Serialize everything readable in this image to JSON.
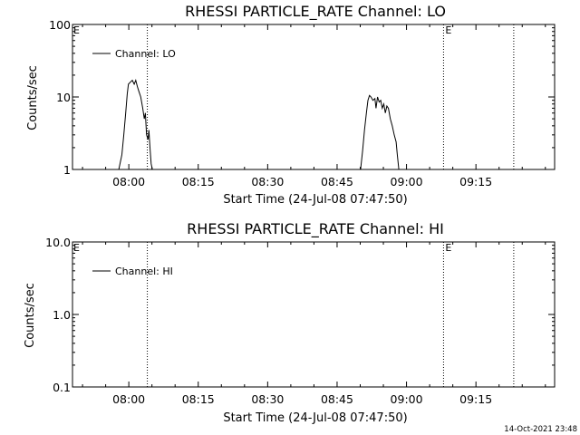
{
  "chart_data": [
    {
      "type": "line",
      "title": "RHESSI PARTICLE_RATE Channel: LO",
      "ylabel": "Counts/sec",
      "xlabel": "Start Time (24-Jul-08 07:47:50)",
      "y_scale": "log",
      "ylim": [
        1,
        100
      ],
      "y_ticks": [
        "1",
        "10",
        "100"
      ],
      "xlim": [
        "07:47:50",
        "09:32:00"
      ],
      "x_ticks": [
        "08:00",
        "08:15",
        "08:30",
        "08:45",
        "09:00",
        "09:15"
      ],
      "legend": {
        "label": "Channel: LO",
        "placement": "top-left"
      },
      "event_lines": [
        {
          "time": "08:04:00",
          "label": ""
        },
        {
          "time": "09:08:00",
          "label": "E"
        },
        {
          "time": "09:23:10",
          "label": ""
        }
      ],
      "left_marker": "E",
      "series": [
        {
          "name": "Channel: LO",
          "segments": [
            [
              [
                "07:57:50",
                1
              ],
              [
                "07:58:30",
                1.6
              ],
              [
                "07:58:55",
                3
              ],
              [
                "07:59:20",
                6
              ],
              [
                "07:59:40",
                11
              ],
              [
                "07:59:55",
                15
              ],
              [
                "08:00:20",
                16
              ],
              [
                "08:00:45",
                17
              ],
              [
                "08:01:10",
                15
              ],
              [
                "08:01:30",
                17
              ],
              [
                "08:01:50",
                14
              ],
              [
                "08:02:10",
                12
              ],
              [
                "08:02:35",
                10
              ],
              [
                "08:03:00",
                7
              ],
              [
                "08:03:20",
                5
              ],
              [
                "08:03:35",
                6
              ],
              [
                "08:03:50",
                3
              ],
              [
                "08:04:10",
                2.6
              ],
              [
                "08:04:20",
                3.5
              ],
              [
                "08:04:35",
                2
              ],
              [
                "08:04:50",
                1.2
              ],
              [
                "08:05:05",
                1
              ]
            ],
            [
              [
                "08:50:05",
                1
              ],
              [
                "08:50:30",
                1.8
              ],
              [
                "08:50:55",
                3.5
              ],
              [
                "08:51:20",
                6
              ],
              [
                "08:51:40",
                9
              ],
              [
                "08:52:00",
                10.5
              ],
              [
                "08:52:20",
                10
              ],
              [
                "08:52:45",
                9
              ],
              [
                "08:53:10",
                9.5
              ],
              [
                "08:53:25",
                7
              ],
              [
                "08:53:45",
                10
              ],
              [
                "08:54:05",
                8.5
              ],
              [
                "08:54:25",
                9
              ],
              [
                "08:54:45",
                7
              ],
              [
                "08:55:05",
                8
              ],
              [
                "08:55:25",
                6
              ],
              [
                "08:55:45",
                7.5
              ],
              [
                "08:56:05",
                7
              ],
              [
                "08:56:30",
                5
              ],
              [
                "08:56:55",
                4
              ],
              [
                "08:57:20",
                3
              ],
              [
                "08:57:45",
                2.4
              ],
              [
                "08:58:00",
                1.6
              ],
              [
                "08:58:20",
                1
              ]
            ]
          ]
        }
      ]
    },
    {
      "type": "line",
      "title": "RHESSI PARTICLE_RATE Channel: HI",
      "ylabel": "Counts/sec",
      "xlabel": "Start Time (24-Jul-08 07:47:50)",
      "y_scale": "log",
      "ylim": [
        0.1,
        10
      ],
      "y_ticks": [
        "0.1",
        "1.0",
        "10.0"
      ],
      "xlim": [
        "07:47:50",
        "09:32:00"
      ],
      "x_ticks": [
        "08:00",
        "08:15",
        "08:30",
        "08:45",
        "09:00",
        "09:15"
      ],
      "legend": {
        "label": "Channel: HI",
        "placement": "top-left"
      },
      "event_lines": [
        {
          "time": "08:04:00",
          "label": ""
        },
        {
          "time": "09:08:00",
          "label": "E"
        },
        {
          "time": "09:23:10",
          "label": ""
        }
      ],
      "left_marker": "E",
      "series": [
        {
          "name": "Channel: HI",
          "segments": []
        }
      ]
    }
  ],
  "footer": {
    "timestamp": "14-Oct-2021 23:48"
  }
}
